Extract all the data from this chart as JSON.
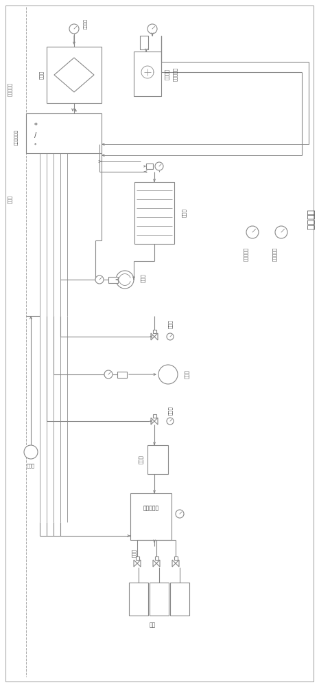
{
  "labels": {
    "chip_control": "芯片机控制",
    "signal_collect": "信号采集系统",
    "control_cabinet": "控制柜",
    "compressor": "压缩机",
    "o2_generator": "氪气发生器",
    "electric_heater": "屈空电热",
    "sealed_box": "密封筱体",
    "cooler": "冷冻器",
    "heater": "加热器",
    "pressure_sensor": "压力传感器",
    "humidifier": "加湿器",
    "seawater_pump": "海水泵",
    "solenoid": "屈空电",
    "buffer_tank": "缓冲罐",
    "gas_mixer": "气体混配仪",
    "gas_tanks": "气罐",
    "pressure_reduce": "减压阀",
    "drain_pump": "排水泵",
    "yi_ci_bianpin": "一次变频"
  },
  "lc": "#888888",
  "dc": "#aaaaaa"
}
